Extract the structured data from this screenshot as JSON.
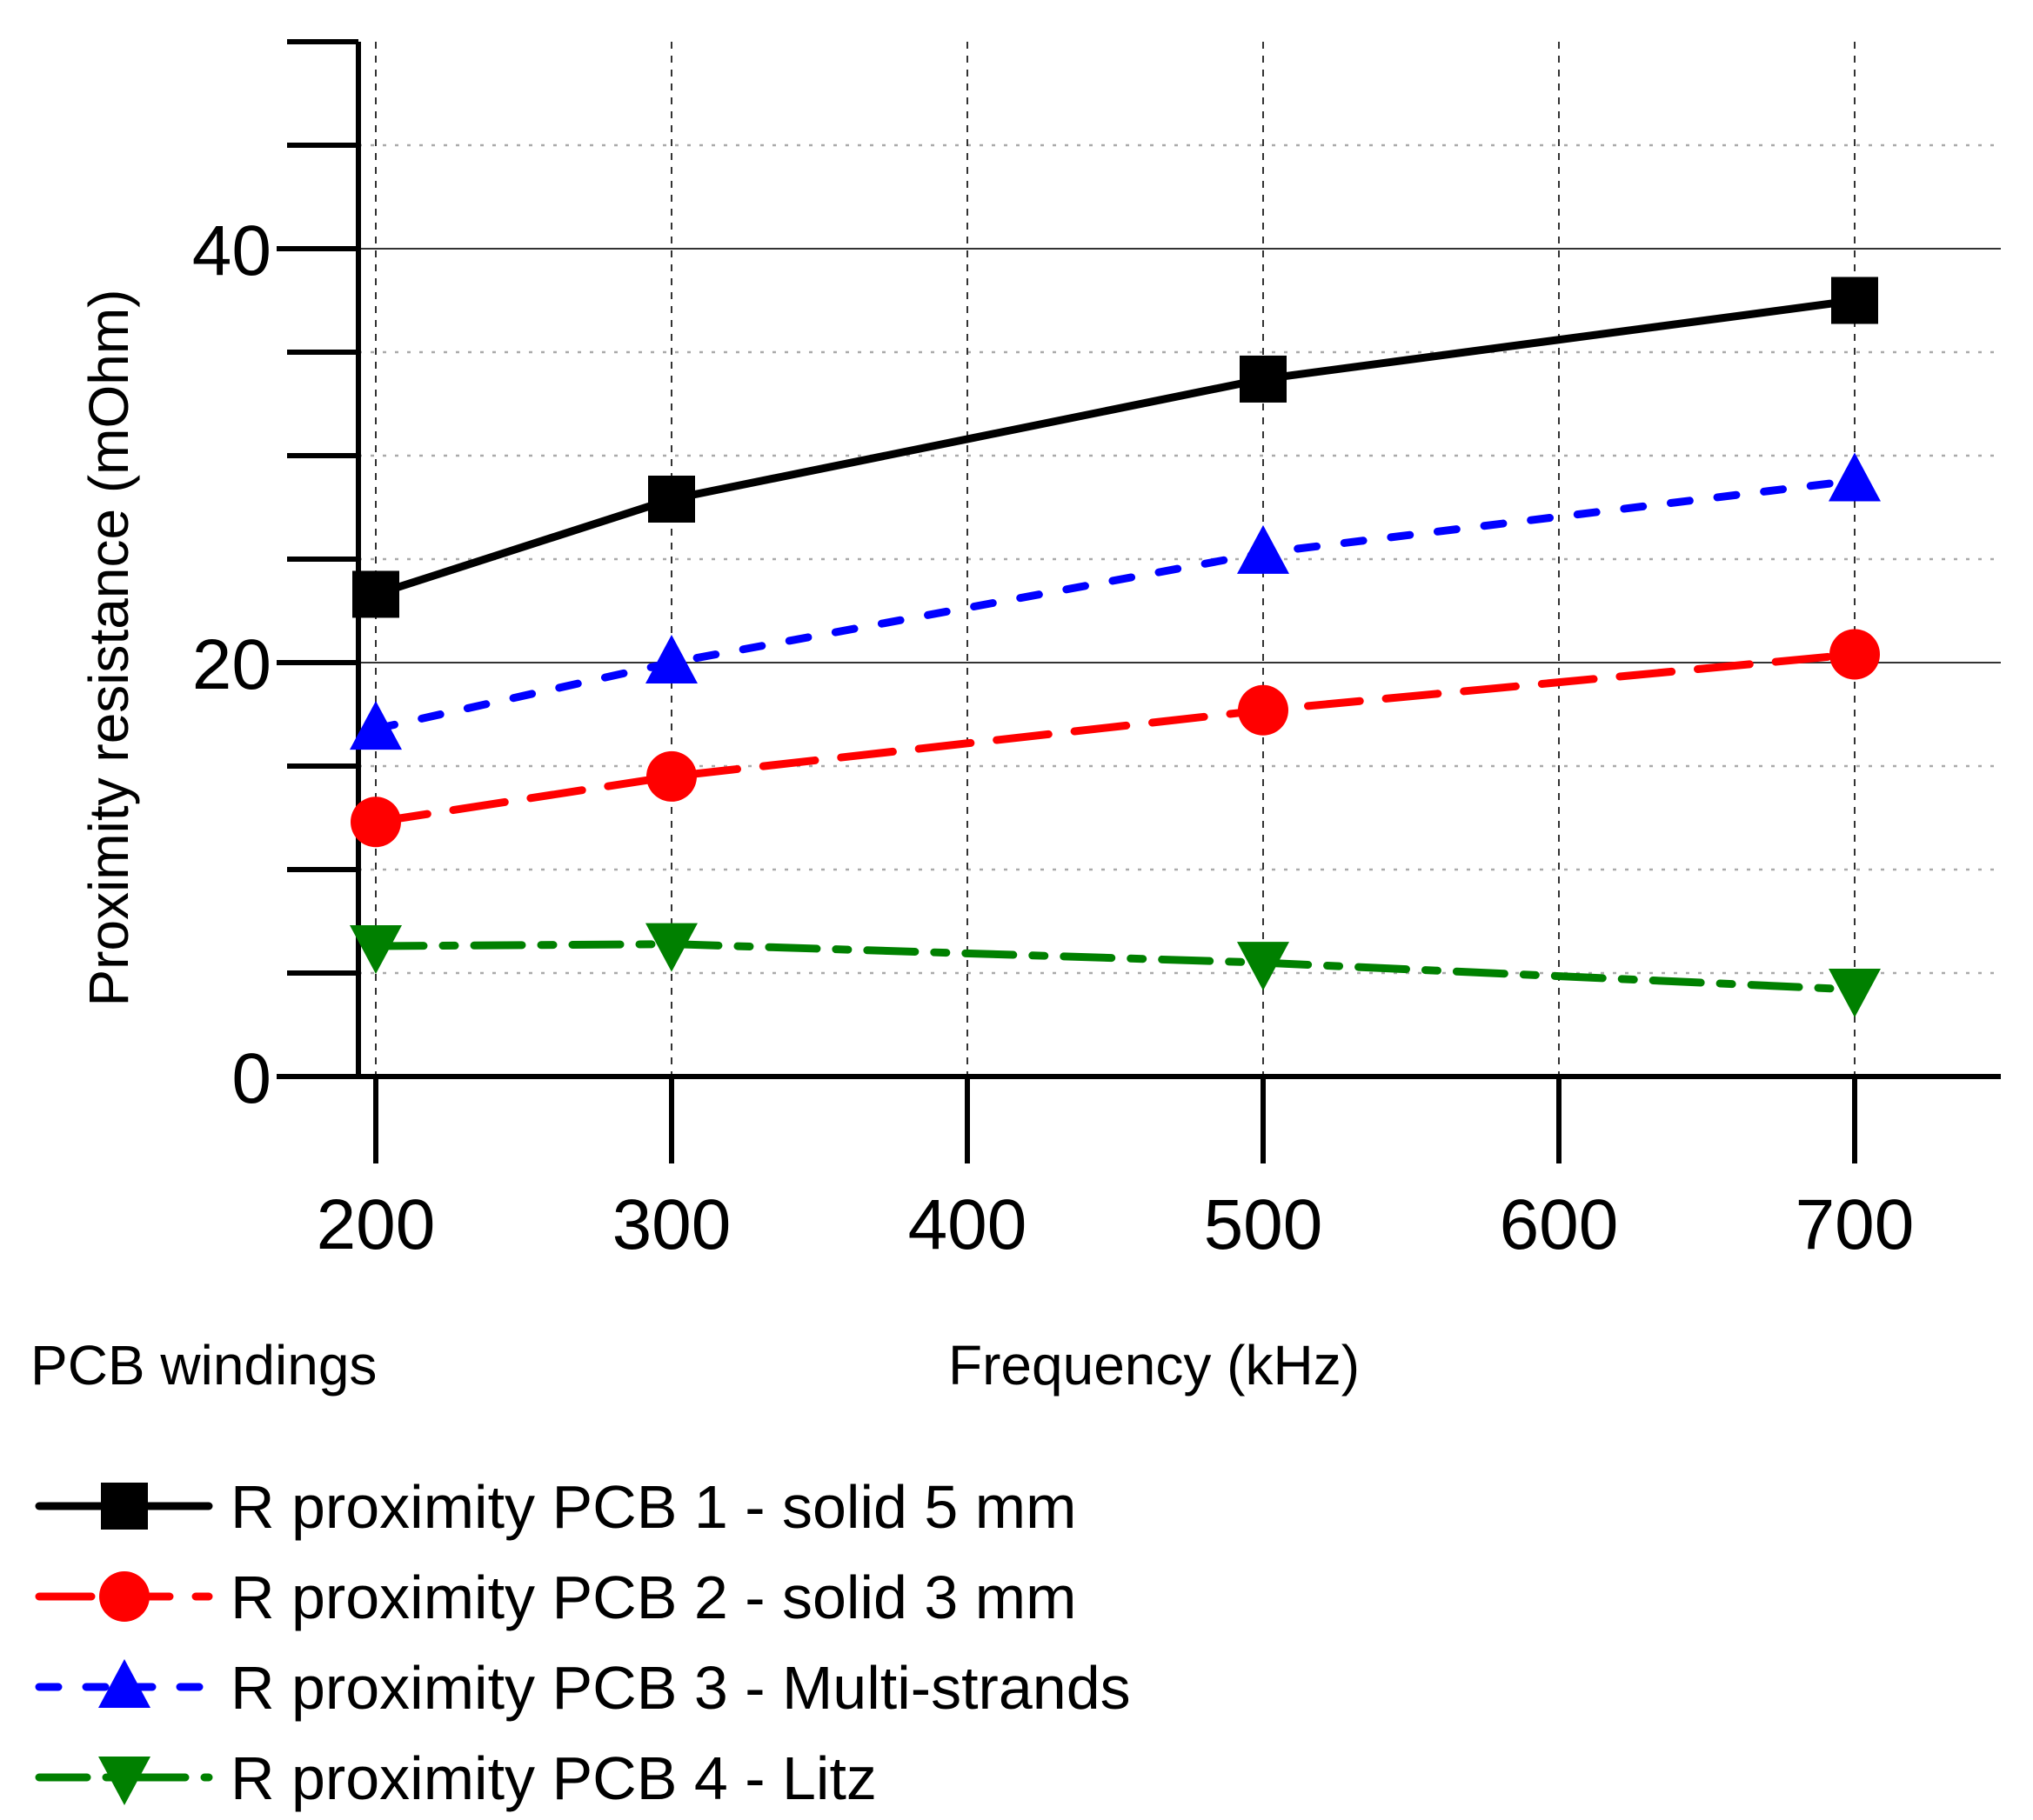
{
  "chart_data": {
    "type": "line",
    "title": "",
    "caption": "PCB windings",
    "xlabel": "Frequency (kHz)",
    "ylabel": "Proximity resistance (mOhm)",
    "x": [
      200,
      300,
      500,
      700
    ],
    "xlim": [
      195,
      750
    ],
    "ylim": [
      0,
      50
    ],
    "x_ticks": [
      200,
      300,
      400,
      500,
      600,
      700
    ],
    "y_ticks": [
      0,
      20,
      40
    ],
    "y_minor_step": 5,
    "grid": true,
    "legend_position": "bottom",
    "series": [
      {
        "name": "R proximity PCB 1 - solid 5 mm",
        "values": [
          23.3,
          27.9,
          33.7,
          37.5
        ],
        "color": "#000000",
        "marker": "square",
        "dash": "solid"
      },
      {
        "name": "R proximity PCB 2 - solid 3 mm",
        "values": [
          12.3,
          14.5,
          17.7,
          20.4
        ],
        "color": "#ff0000",
        "marker": "circle",
        "dash": "dash"
      },
      {
        "name": "R proximity PCB 3 - Multi-strands",
        "values": [
          16.8,
          20.0,
          25.3,
          28.8
        ],
        "color": "#0000ff",
        "marker": "triangle-up",
        "dash": "dot"
      },
      {
        "name": "R proximity PCB 4 - Litz",
        "values": [
          6.3,
          6.4,
          5.5,
          4.2
        ],
        "color": "#008000",
        "marker": "triangle-down",
        "dash": "dashdot"
      }
    ]
  }
}
